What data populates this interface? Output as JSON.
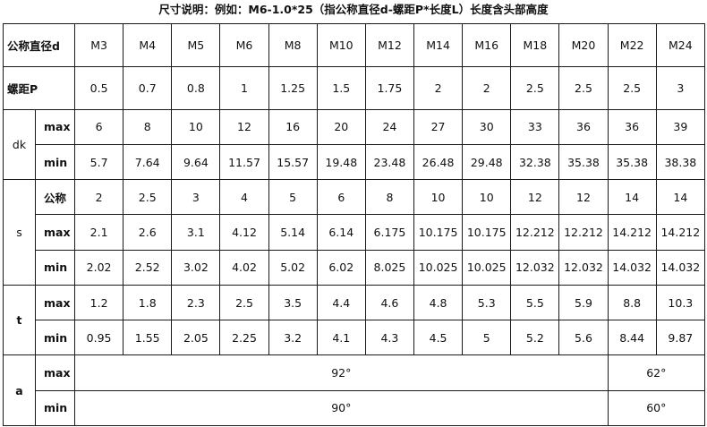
{
  "title": "尺寸说明：例如：M6-1.0*25（指公称直径d-螺距P*长度L）长度含头部高度",
  "table": {
    "sizes_header": "公称直径d",
    "sizes": [
      "M3",
      "M4",
      "M5",
      "M6",
      "M8",
      "M10",
      "M12",
      "M14",
      "M16",
      "M18",
      "M20",
      "M22",
      "M24"
    ],
    "pitch_label": "螺距P",
    "pitch": [
      "0.5",
      "0.7",
      "0.8",
      "1",
      "1.25",
      "1.5",
      "1.75",
      "2",
      "2",
      "2.5",
      "2.5",
      "2.5",
      "3"
    ],
    "dk": {
      "label": "dk",
      "max_label": "max",
      "max": [
        "6",
        "8",
        "10",
        "12",
        "16",
        "20",
        "24",
        "27",
        "30",
        "33",
        "36",
        "36",
        "39"
      ],
      "min_label": "min",
      "min": [
        "5.7",
        "7.64",
        "9.64",
        "11.57",
        "15.57",
        "19.48",
        "23.48",
        "26.48",
        "29.48",
        "32.38",
        "35.38",
        "35.38",
        "38.38"
      ]
    },
    "s": {
      "label": "s",
      "nom_label": "公称",
      "nom": [
        "2",
        "2.5",
        "3",
        "4",
        "5",
        "6",
        "8",
        "10",
        "10",
        "12",
        "12",
        "14",
        "14"
      ],
      "max_label": "max",
      "max": [
        "2.1",
        "2.6",
        "3.1",
        "4.12",
        "5.14",
        "6.14",
        "6.175",
        "10.175",
        "10.175",
        "12.212",
        "12.212",
        "14.212",
        "14.212"
      ],
      "min_label": "min",
      "min": [
        "2.02",
        "2.52",
        "3.02",
        "4.02",
        "5.02",
        "6.02",
        "8.025",
        "10.025",
        "10.025",
        "12.032",
        "12.032",
        "14.032",
        "14.032"
      ]
    },
    "t": {
      "label": "t",
      "max_label": "max",
      "max": [
        "1.2",
        "1.8",
        "2.3",
        "2.5",
        "3.5",
        "4.4",
        "4.6",
        "4.8",
        "5.3",
        "5.5",
        "5.9",
        "8.8",
        "10.3"
      ],
      "min_label": "min",
      "min": [
        "0.95",
        "1.55",
        "2.05",
        "2.25",
        "3.2",
        "4.1",
        "4.3",
        "4.5",
        "5",
        "5.2",
        "5.6",
        "8.44",
        "9.87"
      ]
    },
    "a": {
      "label": "a",
      "max_label": "max",
      "max_main": "92°",
      "max_large": "62°",
      "min_label": "min",
      "min_main": "90°",
      "min_large": "60°"
    }
  }
}
